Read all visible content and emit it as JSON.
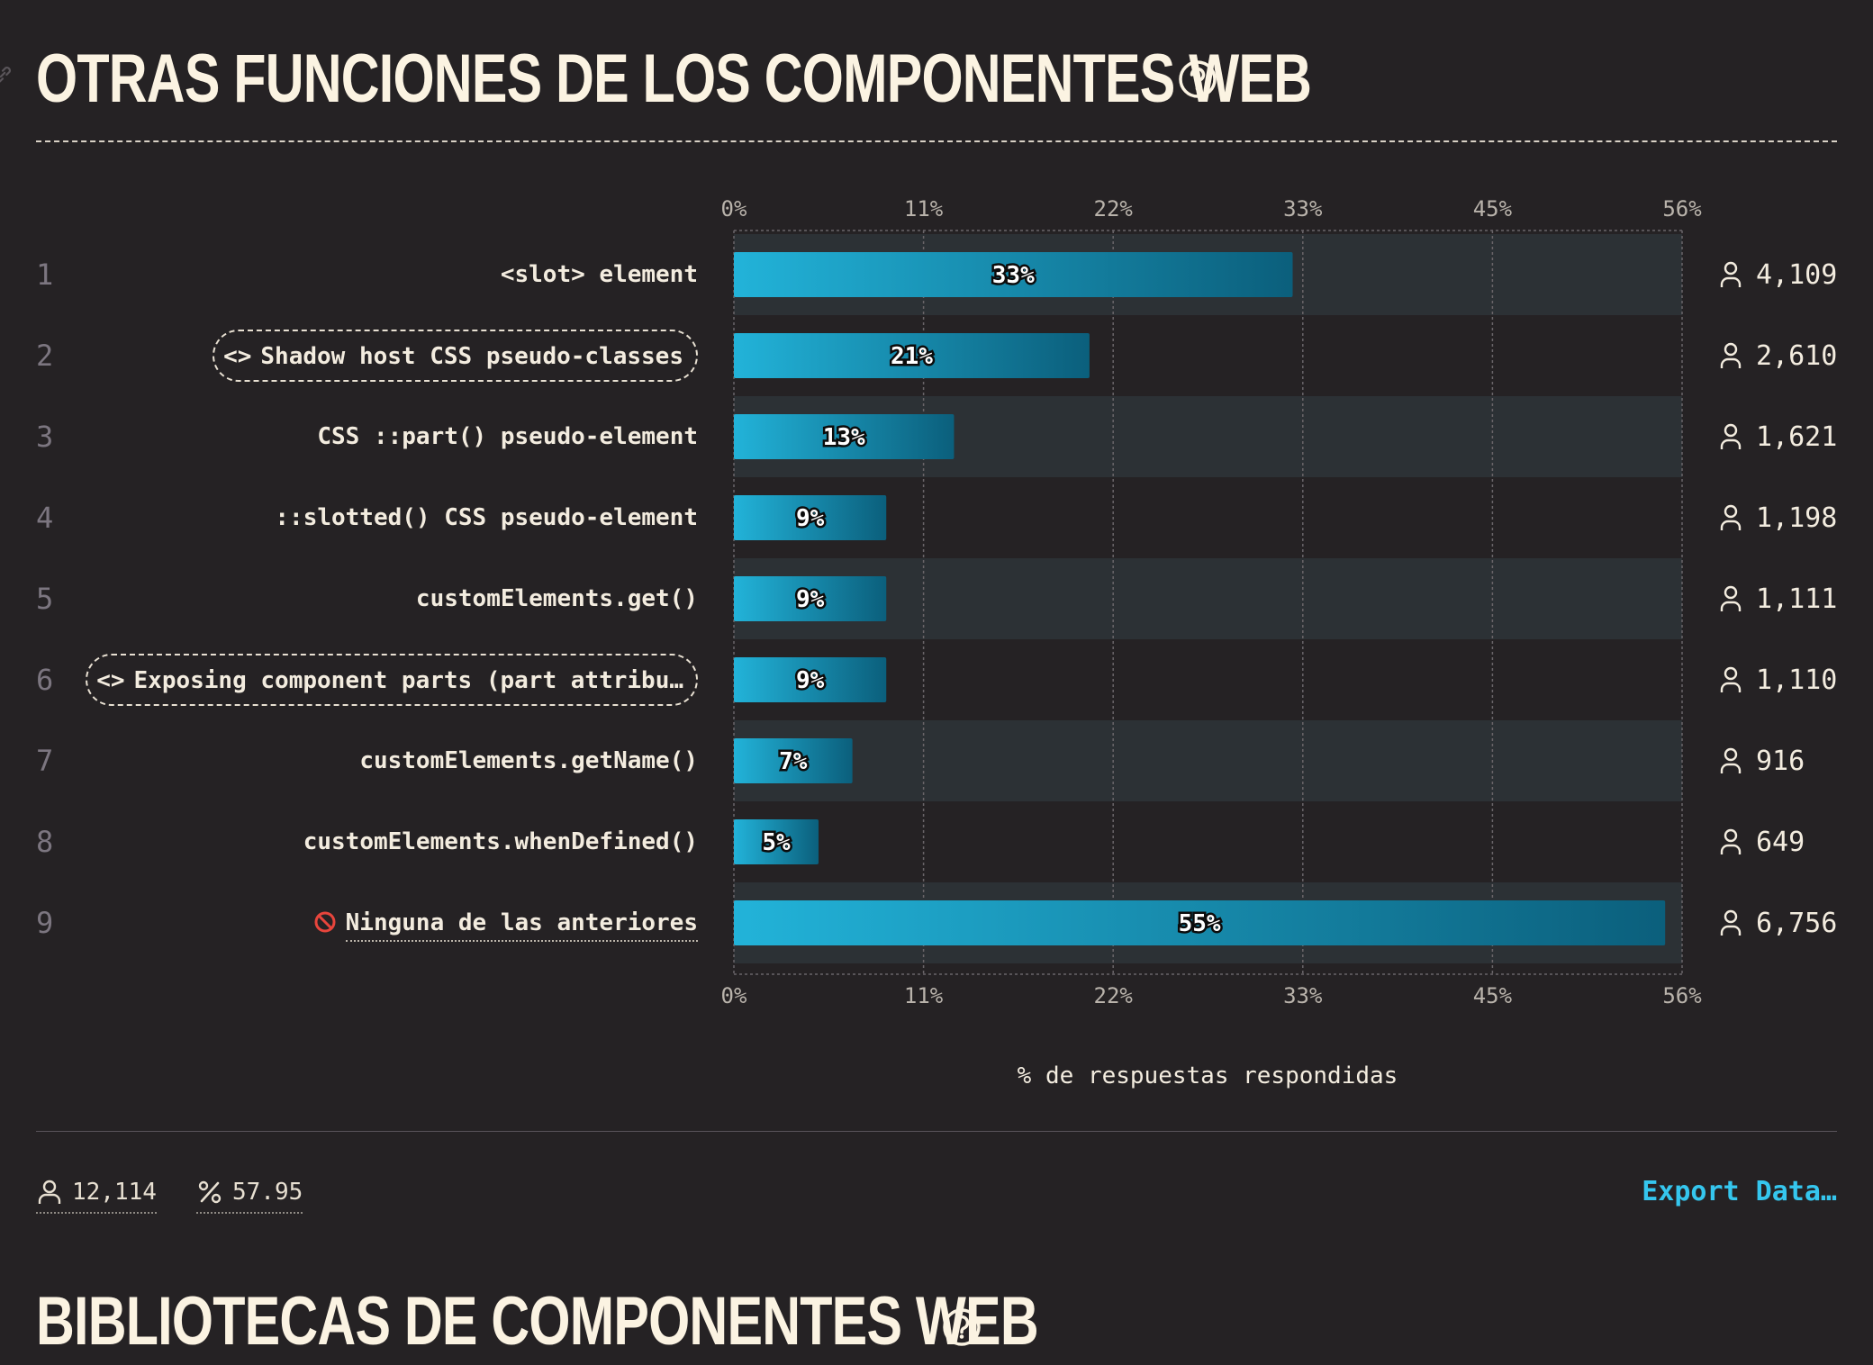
{
  "section": {
    "title": "OTRAS FUNCIONES DE LOS COMPONENTES WEB",
    "help_icon": "question-circle-icon",
    "link_icon": "link-icon"
  },
  "chart_data": {
    "type": "bar",
    "orientation": "horizontal",
    "ticks": [
      "0%",
      "11%",
      "22%",
      "33%",
      "45%",
      "56%"
    ],
    "xlim": [
      0,
      56
    ],
    "xlabel": "% de respuestas respondidas",
    "grid": true,
    "categories": [
      "<slot> element",
      "Shadow host CSS pseudo-classes",
      "CSS ::part() pseudo-element",
      "::slotted() CSS pseudo-element",
      "customElements.get()",
      "Exposing component parts (part attribu…",
      "customElements.getName()",
      "customElements.whenDefined()",
      "Ninguna de las anteriores"
    ],
    "ranks": [
      "1",
      "2",
      "3",
      "4",
      "5",
      "6",
      "7",
      "8",
      "9"
    ],
    "values": [
      33,
      21,
      13,
      9,
      9,
      9,
      7,
      5,
      55
    ],
    "value_labels": [
      "33%",
      "21%",
      "13%",
      "9%",
      "9%",
      "9%",
      "7%",
      "5%",
      "55%"
    ],
    "counts": [
      "4,109",
      "2,610",
      "1,621",
      "1,198",
      "1,111",
      "1,110",
      "916",
      "649",
      "6,756"
    ],
    "boxed_rows": [
      1,
      5
    ],
    "bar_colors": [
      "#22b3d9",
      "#0b5f7c"
    ],
    "stripe_color": "#2c3135"
  },
  "footer": {
    "respondents": "12,114",
    "percent": "57.95",
    "export_label": "Export Data…"
  },
  "next_section": {
    "title": "BIBLIOTECAS DE COMPONENTES WEB"
  }
}
